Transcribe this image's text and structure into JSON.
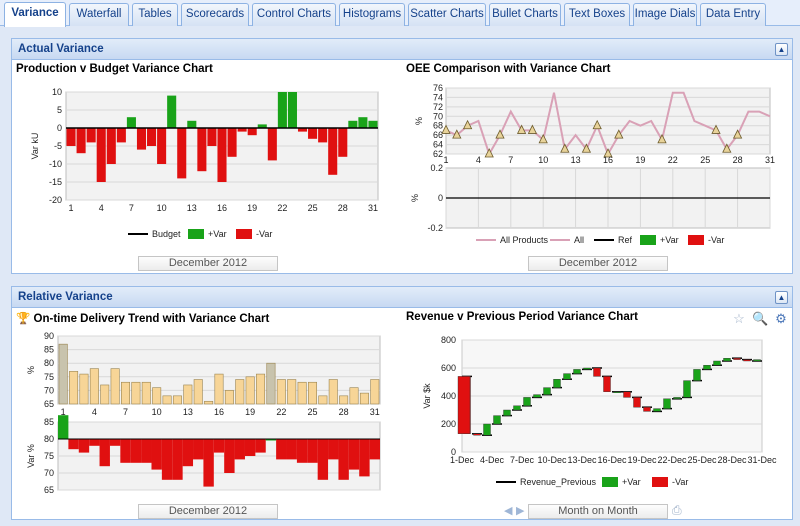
{
  "tabs": [
    "Variance",
    "Waterfall",
    "Tables",
    "Scorecards",
    "Control Charts",
    "Histograms",
    "Scatter Charts",
    "Bullet Charts",
    "Text Boxes",
    "Image Dials",
    "Data Entry"
  ],
  "panels": {
    "actual": "Actual Variance",
    "relative": "Relative Variance"
  },
  "colors": {
    "pos": "#19a319",
    "neg": "#e01010",
    "pink": "#d9a1b6",
    "bar_tan": "#f7d597",
    "accent": "#15428b"
  },
  "chart1": {
    "title": "Production v Budget Variance Chart",
    "date": "December 2012",
    "legend": [
      "Budget",
      "+Var",
      "-Var"
    ],
    "chart_data": {
      "type": "bar",
      "ylabel": "Var kU",
      "ylim": [
        -20,
        10
      ],
      "yticks": [
        "10",
        "5",
        "0",
        "-5",
        "-10",
        "-15",
        "-20"
      ],
      "xticks": [
        "1",
        "4",
        "7",
        "10",
        "13",
        "16",
        "19",
        "22",
        "25",
        "28",
        "31"
      ],
      "x": [
        1,
        2,
        3,
        4,
        5,
        6,
        7,
        8,
        9,
        10,
        11,
        12,
        13,
        14,
        15,
        16,
        17,
        18,
        19,
        20,
        21,
        22,
        23,
        24,
        25,
        26,
        27,
        28,
        29,
        30,
        31
      ],
      "values": [
        -5,
        -7,
        -4,
        -15,
        -10,
        -4,
        3,
        -6,
        -5,
        -10,
        9,
        -14,
        2,
        -12,
        -5,
        -15,
        -8,
        -1,
        -2,
        1,
        -9,
        10,
        10,
        -1,
        -3,
        -4,
        -13,
        -8,
        2,
        3,
        2
      ]
    }
  },
  "chart2": {
    "title": "OEE Comparison with Variance Chart",
    "date": "December 2012",
    "legend": [
      "All Products",
      "All",
      "Ref",
      "+Var",
      "-Var"
    ],
    "chart_data": {
      "type": "line",
      "ylabel": "%",
      "ylim": [
        62,
        76
      ],
      "yticks": [
        "76",
        "74",
        "72",
        "70",
        "68",
        "66",
        "64",
        "62"
      ],
      "xticks": [
        "1",
        "4",
        "7",
        "10",
        "13",
        "16",
        "19",
        "22",
        "25",
        "28",
        "31"
      ],
      "series": [
        {
          "name": "All Products",
          "values": [
            67,
            66,
            68,
            69,
            62,
            66,
            71,
            67,
            67,
            65,
            75,
            63,
            66,
            63,
            68,
            62,
            66,
            69,
            68,
            69,
            65,
            75,
            75,
            69,
            68,
            67,
            63,
            66,
            71,
            71,
            70
          ]
        }
      ],
      "var_ylabel": "%",
      "var_ylim": [
        -0.2,
        0.2
      ],
      "var_yticks": [
        "0.2",
        "0",
        "-0.2"
      ]
    }
  },
  "chart3": {
    "title": "On-time Delivery Trend with Variance Chart",
    "date": "December 2012",
    "chart_data": {
      "type": "bar",
      "ylabel": "%",
      "ylim": [
        65,
        90
      ],
      "yticks": [
        "90",
        "85",
        "80",
        "75",
        "70",
        "65"
      ],
      "xticks": [
        "1",
        "4",
        "7",
        "10",
        "13",
        "16",
        "19",
        "22",
        "25",
        "28",
        "31"
      ],
      "values": [
        87,
        77,
        76,
        78,
        72,
        78,
        73,
        73,
        73,
        71,
        68,
        68,
        72,
        74,
        66,
        76,
        70,
        74,
        75,
        76,
        80,
        74,
        74,
        73,
        73,
        68,
        74,
        68,
        71,
        69,
        74
      ],
      "var_ylabel": "Var %",
      "var_ylim": [
        65,
        85
      ],
      "var_yticks": [
        "85",
        "80",
        "75",
        "70",
        "65"
      ],
      "var_values": [
        87,
        77,
        76,
        78,
        72,
        78,
        73,
        73,
        73,
        71,
        68,
        68,
        72,
        74,
        66,
        76,
        70,
        74,
        75,
        76,
        80,
        74,
        74,
        73,
        73,
        68,
        74,
        68,
        71,
        69,
        74
      ]
    }
  },
  "chart4": {
    "title": "Revenue v Previous Period Variance Chart",
    "nav_label": "Month on Month",
    "legend": [
      "Revenue_Previous",
      "+Var",
      "-Var"
    ],
    "chart_data": {
      "type": "bar",
      "ylabel": "Var $k",
      "ylim": [
        0,
        800
      ],
      "yticks": [
        "800",
        "600",
        "400",
        "200",
        "0"
      ],
      "xticks": [
        "1-Dec",
        "4-Dec",
        "7-Dec",
        "10-Dec",
        "13-Dec",
        "16-Dec",
        "19-Dec",
        "22-Dec",
        "25-Dec",
        "28-Dec",
        "31-Dec"
      ],
      "series": [
        {
          "name": "Revenue_Previous",
          "values": [
            540,
            130,
            120,
            200,
            260,
            300,
            330,
            390,
            410,
            460,
            520,
            560,
            590,
            600,
            540,
            430,
            430,
            390,
            320,
            290,
            310,
            380,
            390,
            510,
            590,
            620,
            650,
            670,
            660,
            650,
            660
          ]
        }
      ]
    }
  }
}
